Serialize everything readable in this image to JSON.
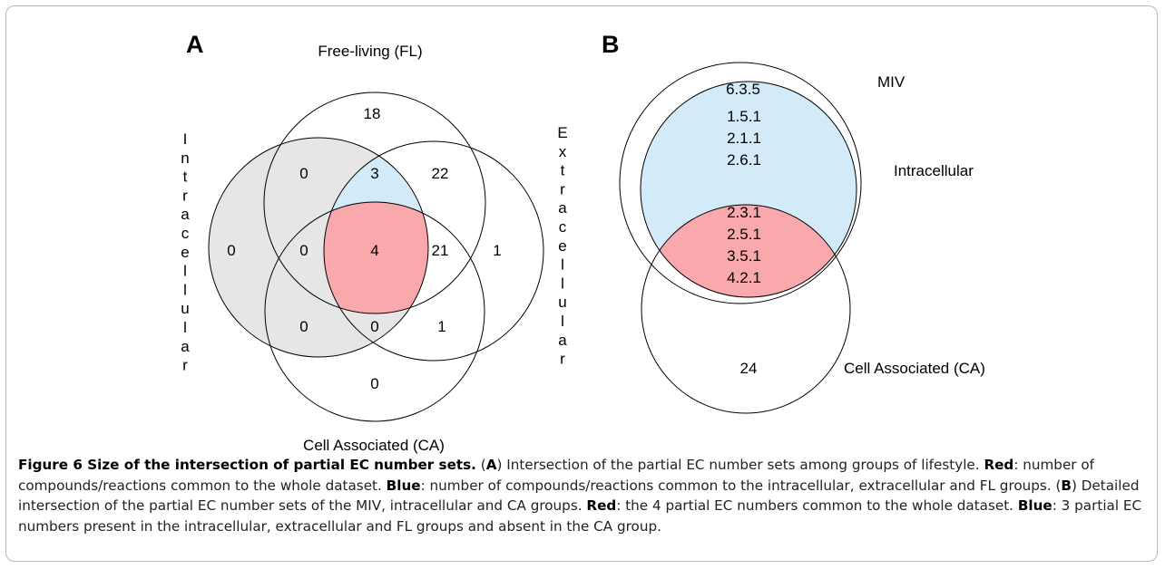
{
  "panel_a": {
    "label": "A",
    "set_free_living": "Free-living (FL)",
    "set_cell_associated": "Cell Associated (CA)",
    "set_intracellular": "Intracellular",
    "set_extracellular": "Extracellular",
    "regions": {
      "fl_only": "18",
      "fl_intra": "0",
      "fl_intra_extra": "3",
      "fl_extra": "22",
      "intra_only": "0",
      "intra_fl_ca": "0",
      "all_four": "4",
      "fl_extra_ca": "21",
      "extra_only": "1",
      "intra_ca": "0",
      "intra_extra_ca": "0",
      "extra_ca": "1",
      "ca_only": "0"
    }
  },
  "panel_b": {
    "label": "B",
    "set_miv": "MIV",
    "set_intracellular": "Intracellular",
    "set_cell_associated": "Cell Associated (CA)",
    "miv_only": "6.3.5",
    "blue_region": [
      "1.5.1",
      "2.1.1",
      "2.6.1"
    ],
    "red_region": [
      "2.3.1",
      "2.5.1",
      "3.5.1",
      "4.2.1"
    ],
    "ca_only": "24"
  },
  "colors": {
    "common_all": "#f9a8ab",
    "common_intra_extra_fl": "#d3ebf9",
    "intracellular_fill": "#e6e6e6"
  },
  "caption": {
    "figure_label": "Figure 6 Size of the intersection of partial EC number sets.",
    "p1": " (",
    "a_ref": "A",
    "p2": ") Intersection of the partial EC number sets among groups of lifestyle. ",
    "red_label_1": "Red",
    "p3": ": number of compounds/reactions common to the whole dataset. ",
    "blue_label_1": "Blue",
    "p4": ": number of compounds/reactions common to the intracellular, extracellular and FL groups. (",
    "b_ref": "B",
    "p5": ") Detailed intersection of the partial EC number sets of the MIV, intracellular and CA groups. ",
    "red_label_2": "Red",
    "p6": ": the 4 partial EC numbers common to the whole dataset. ",
    "blue_label_2": "Blue",
    "p7": ": 3 partial EC numbers present in the intracellular, extracellular and FL groups and absent in the CA group."
  }
}
